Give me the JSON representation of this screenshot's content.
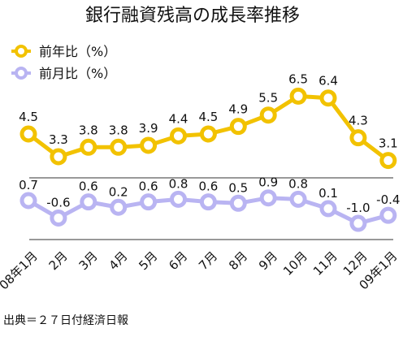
{
  "chart_data": {
    "type": "line",
    "title": "銀行融資残高の成長率推移",
    "categories": [
      "08年1月",
      "2月",
      "3月",
      "4月",
      "5月",
      "6月",
      "7月",
      "8月",
      "9月",
      "10月",
      "11月",
      "12月",
      "09年1月"
    ],
    "series": [
      {
        "name": "前年比（%）",
        "color": "#f2c200",
        "values": [
          4.5,
          3.3,
          3.8,
          3.8,
          3.9,
          4.4,
          4.5,
          4.9,
          5.5,
          6.5,
          6.4,
          4.3,
          3.1
        ],
        "labels": [
          "4.5",
          "3.3",
          "3.8",
          "3.8",
          "3.9",
          "4.4",
          "4.5",
          "4.9",
          "5.5",
          "6.5",
          "6.4",
          "4.3",
          "3.1"
        ]
      },
      {
        "name": "前月比（%）",
        "color": "#b9b4f2",
        "values": [
          0.7,
          -0.6,
          0.6,
          0.2,
          0.6,
          0.8,
          0.6,
          0.5,
          0.9,
          0.8,
          0.1,
          -1.0,
          -0.4
        ],
        "labels": [
          "0.7",
          "-0.6",
          "0.6",
          "0.2",
          "0.6",
          "0.8",
          "0.6",
          "0.5",
          "0.9",
          "0.8",
          "0.1",
          "-1.0",
          "-0.4"
        ]
      }
    ],
    "legend_position": "top-left",
    "grid": false,
    "source": "出典＝２７日付経済日報"
  }
}
